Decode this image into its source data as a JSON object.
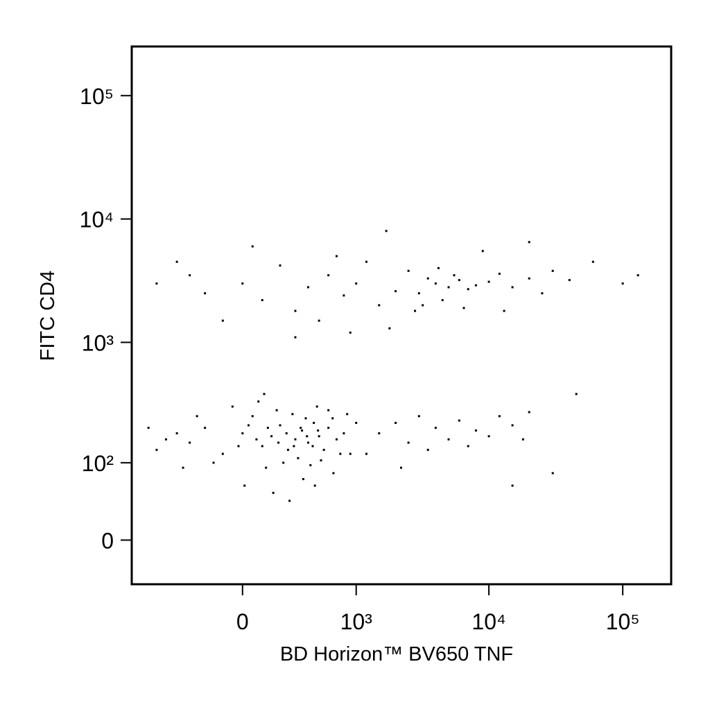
{
  "chart_data": {
    "type": "scatter",
    "x_label": "BD Horizon™ BV650 TNF",
    "y_label": "FITC CD4",
    "xscale": "biexponential",
    "yscale": "biexponential",
    "xlim": [
      -950,
      230000
    ],
    "ylim": [
      -46,
      250000
    ],
    "xticks": [
      0,
      {
        "value": 1000,
        "label": "10³"
      },
      {
        "value": 10000,
        "label": "10⁴"
      },
      {
        "value": 100000,
        "label": "10⁵"
      }
    ],
    "yticks": [
      0,
      {
        "value": 100,
        "label": "10²"
      },
      {
        "value": 1000,
        "label": "10³"
      },
      {
        "value": 10000,
        "label": "10⁴"
      },
      {
        "value": 100000,
        "label": "10⁵"
      }
    ],
    "color": "#000000",
    "x": [
      -300,
      -200,
      -100,
      0,
      50,
      100,
      150,
      200,
      250,
      300,
      350,
      400,
      450,
      500,
      550,
      600,
      700,
      800,
      120,
      220,
      320,
      420,
      520,
      -150,
      -50,
      80,
      180,
      280,
      380,
      480,
      600,
      -400,
      -500,
      -600,
      -700,
      -350,
      10,
      160,
      260,
      360,
      460,
      660,
      900,
      1000,
      70,
      130,
      190,
      240,
      290,
      340,
      390,
      440,
      490,
      30,
      -20,
      650,
      750,
      850,
      -250,
      110,
      1500,
      2000,
      2500,
      3000,
      3500,
      4000,
      5000,
      6000,
      7000,
      8000,
      10000,
      12000,
      15000,
      18000,
      20000,
      30000,
      45000,
      1200,
      2200,
      15000,
      4000,
      5000,
      6000,
      3000,
      7000,
      4500,
      5500,
      3500,
      8000,
      10000,
      12000,
      15000,
      20000,
      25000,
      30000,
      40000,
      60000,
      100000,
      2000,
      2500,
      1500,
      1000,
      800,
      600,
      400,
      300,
      200,
      100,
      0,
      -100,
      -200,
      -300,
      500,
      700,
      1200,
      1800,
      2800,
      9000,
      13000,
      6500,
      4200,
      3200,
      -400,
      50,
      300,
      900,
      20000,
      1700,
      -600,
      130000
    ],
    "y": [
      150,
      200,
      120,
      180,
      250,
      140,
      170,
      210,
      130,
      160,
      190,
      150,
      220,
      170,
      130,
      200,
      160,
      180,
      90,
      100,
      110,
      95,
      105,
      100,
      300,
      330,
      280,
      260,
      240,
      300,
      280,
      180,
      160,
      130,
      200,
      90,
      60,
      50,
      40,
      70,
      60,
      80,
      120,
      220,
      160,
      200,
      150,
      180,
      140,
      200,
      170,
      140,
      190,
      210,
      140,
      240,
      120,
      260,
      250,
      380,
      180,
      220,
      150,
      250,
      130,
      200,
      160,
      230,
      140,
      190,
      170,
      250,
      210,
      160,
      270,
      80,
      380,
      120,
      90,
      60,
      3000,
      2800,
      3200,
      2500,
      2700,
      2200,
      3500,
      3300,
      2900,
      3100,
      3600,
      2800,
      3300,
      2500,
      3800,
      3200,
      4500,
      3000,
      2600,
      3800,
      2000,
      3000,
      2400,
      3500,
      2800,
      1800,
      4200,
      2200,
      3000,
      1500,
      2500,
      3500,
      1500,
      5000,
      4500,
      1300,
      1800,
      5500,
      1800,
      1900,
      4000,
      2000,
      4500,
      6000,
      1100,
      1200,
      6500,
      8000,
      3000,
      3500
    ]
  }
}
